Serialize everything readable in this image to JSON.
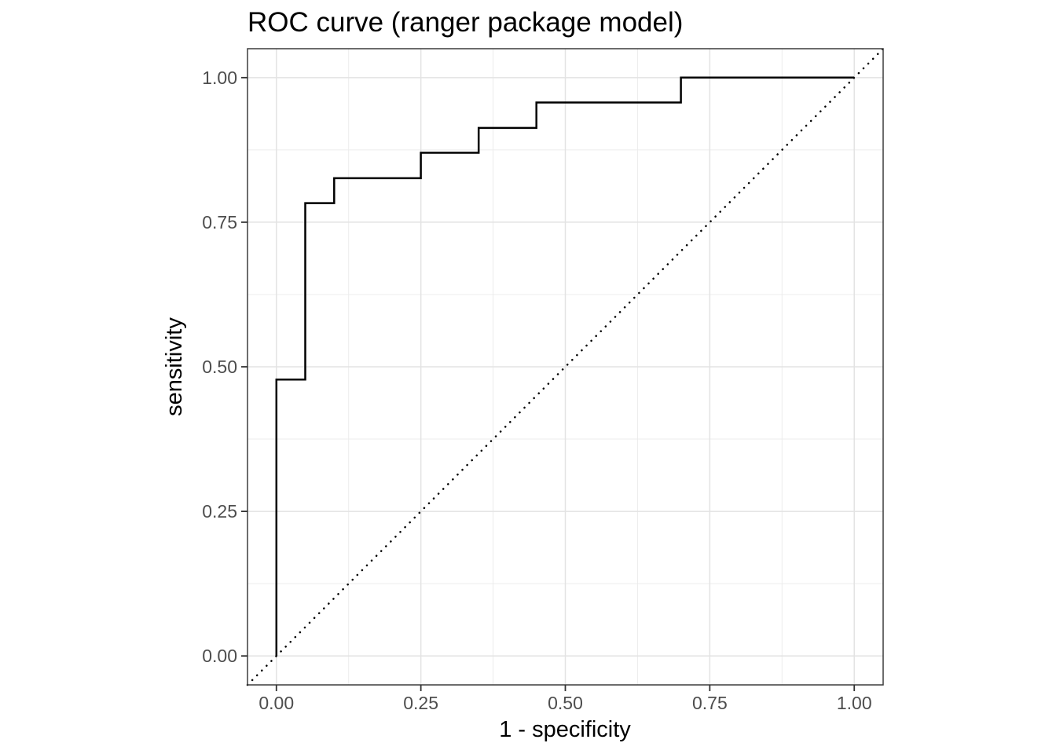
{
  "figure": {
    "title": "ROC curve (ranger package model)"
  },
  "chart_data": {
    "type": "line",
    "subtype": "roc-step-curve",
    "title": "ROC curve (ranger package model)",
    "xlabel": "1 - specificity",
    "ylabel": "sensitivity",
    "xlim": [
      -0.05,
      1.05
    ],
    "ylim": [
      -0.05,
      1.05
    ],
    "x_ticks": [
      0,
      0.25,
      0.5,
      0.75,
      1
    ],
    "x_tick_labels": [
      "0.00",
      "0.25",
      "0.50",
      "0.75",
      "1.00"
    ],
    "y_ticks": [
      0,
      0.25,
      0.5,
      0.75,
      1
    ],
    "y_tick_labels": [
      "0.00",
      "0.25",
      "0.50",
      "0.75",
      "1.00"
    ],
    "minor_gridlines": [
      0.125,
      0.375,
      0.625,
      0.875
    ],
    "grid": "major+minor",
    "legend": "none",
    "series": [
      {
        "name": "ROC curve",
        "style": "solid-step",
        "color": "#000000",
        "points": [
          [
            0.0,
            0.0
          ],
          [
            0.0,
            0.478
          ],
          [
            0.05,
            0.478
          ],
          [
            0.05,
            0.783
          ],
          [
            0.1,
            0.783
          ],
          [
            0.1,
            0.826
          ],
          [
            0.25,
            0.826
          ],
          [
            0.25,
            0.87
          ],
          [
            0.35,
            0.87
          ],
          [
            0.35,
            0.913
          ],
          [
            0.45,
            0.913
          ],
          [
            0.45,
            0.957
          ],
          [
            0.7,
            0.957
          ],
          [
            0.7,
            1.0
          ],
          [
            1.0,
            1.0
          ]
        ]
      },
      {
        "name": "chance diagonal",
        "style": "dotted",
        "color": "#000000",
        "points": [
          [
            -0.05,
            -0.05
          ],
          [
            1.05,
            1.05
          ]
        ]
      }
    ]
  },
  "style": {
    "background": "#ffffff",
    "curve_color": "#000000",
    "tick_label_color": "#4d4d4d",
    "tick_mark_color": "#333333",
    "axis_title_color": "#000000",
    "panel_border_color": "#3c3c3c",
    "grid_major_color": "#e3e3e3",
    "grid_minor_color": "#ececec"
  }
}
